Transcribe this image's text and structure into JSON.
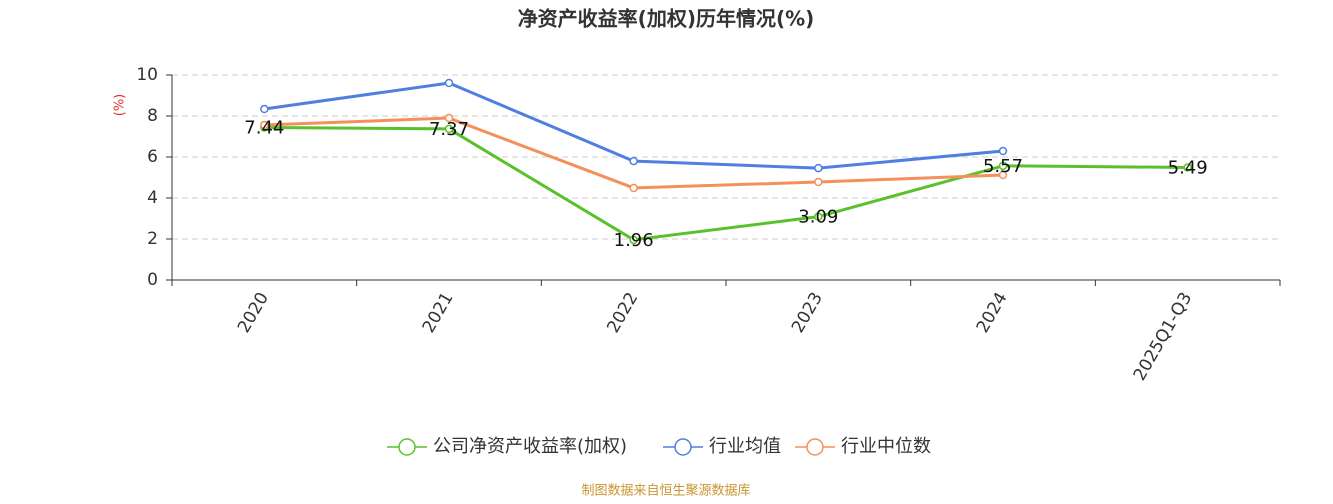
{
  "chart_data": {
    "type": "line",
    "title": "净资产收益率(加权)历年情况(%)",
    "y_label": "(%)",
    "categories": [
      "2020",
      "2021",
      "2022",
      "2023",
      "2024",
      "2025Q1-Q3"
    ],
    "series": [
      {
        "name": "公司净资产收益率(加权)",
        "color": "#5ac12d",
        "values": [
          7.44,
          7.37,
          1.96,
          3.09,
          5.57,
          5.49
        ],
        "show_labels": true
      },
      {
        "name": "行业均值",
        "color": "#4f7fe0",
        "values": [
          8.34,
          9.61,
          5.8,
          5.46,
          6.29,
          null
        ],
        "show_labels": false
      },
      {
        "name": "行业中位数",
        "color": "#f5905a",
        "values": [
          7.56,
          7.9,
          4.49,
          4.78,
          5.12,
          null
        ],
        "show_labels": false
      }
    ],
    "ylim": [
      0,
      10
    ],
    "yticks": [
      0,
      2,
      4,
      6,
      8,
      10
    ],
    "grid": true,
    "source": "制图数据来自恒生聚源数据库"
  }
}
